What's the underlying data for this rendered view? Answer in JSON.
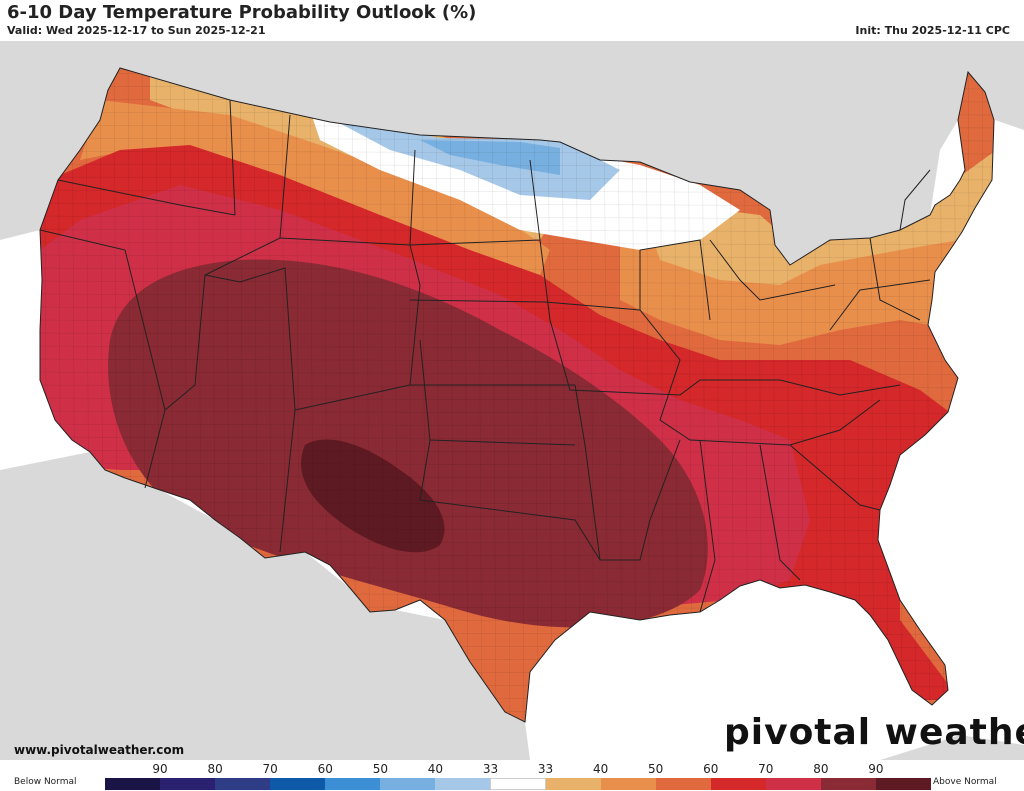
{
  "header": {
    "title": "6-10 Day Temperature Probability Outlook (%)",
    "valid": "Valid: Wed 2025-12-17 to Sun 2025-12-21",
    "init": "Init: Thu 2025-12-11 CPC"
  },
  "footer": {
    "url": "www.pivotalweather.com",
    "logo": "pivotal weather"
  },
  "legend": {
    "below_label": "Below Normal",
    "above_label": "Above Normal",
    "ticks": [
      "90",
      "80",
      "70",
      "60",
      "50",
      "40",
      "33",
      "33",
      "40",
      "50",
      "60",
      "70",
      "80",
      "90"
    ],
    "colors": [
      "#1b1446",
      "#2a2170",
      "#2e3d86",
      "#0e5aa8",
      "#3d8fd5",
      "#77b0e0",
      "#a6c8e8",
      "#ffffff",
      "#e8b26a",
      "#e98f4c",
      "#e06a3e",
      "#d4282a",
      "#cf3048",
      "#8a2a34",
      "#5e1a22"
    ]
  },
  "map": {
    "probability_colors": {
      "above_33_40": "#e8b26a",
      "above_40_50": "#e98f4c",
      "above_50_60": "#e06a3e",
      "above_60_70": "#d4282a",
      "above_70_80": "#cf3048",
      "above_80_90": "#8a2a34",
      "above_90": "#5e1a22",
      "below_33_40": "#a6c8e8",
      "below_40_50": "#77b0e0",
      "near_normal": "#ffffff",
      "land_outside": "#d9d9d9",
      "water": "#ffffff"
    }
  }
}
